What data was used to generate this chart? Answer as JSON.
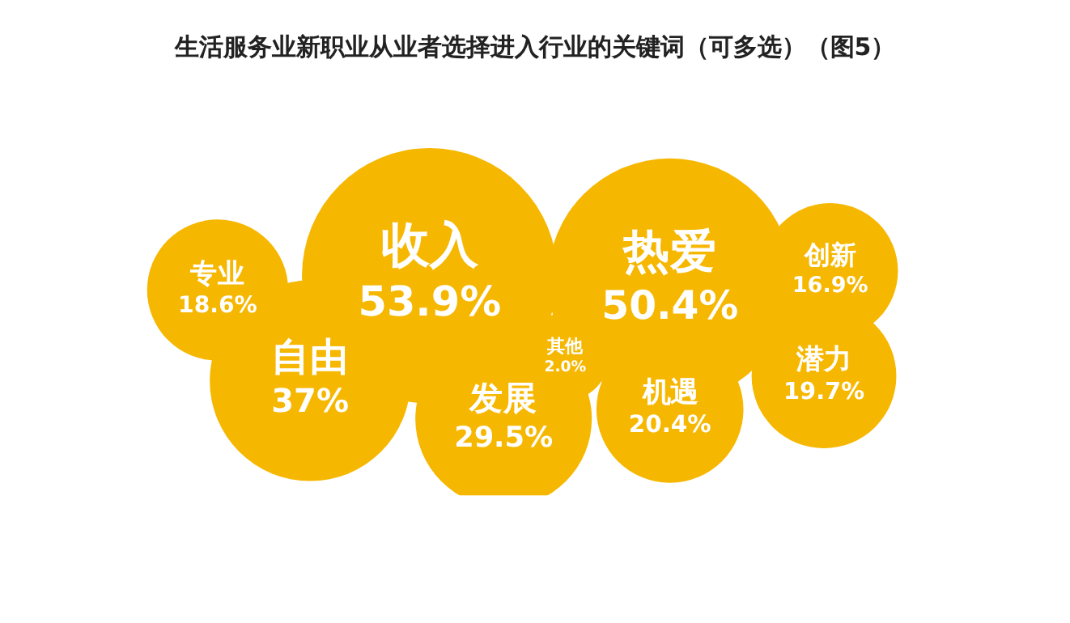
{
  "chart_data": {
    "type": "other",
    "title": "生活服务业新职业从业者选择进入行业的关键词（可多选）（图5）",
    "categories": [
      "专业",
      "收入",
      "热爱",
      "创新",
      "自由",
      "其他",
      "潜力",
      "发展",
      "机遇"
    ],
    "values": [
      18.6,
      53.9,
      50.4,
      16.9,
      37,
      2.0,
      19.7,
      29.5,
      20.4
    ],
    "value_labels": [
      "18.6%",
      "53.9%",
      "50.4%",
      "16.9%",
      "37%",
      "2.0%",
      "19.7%",
      "29.5%",
      "20.4%"
    ],
    "color": "#f6b700"
  }
}
